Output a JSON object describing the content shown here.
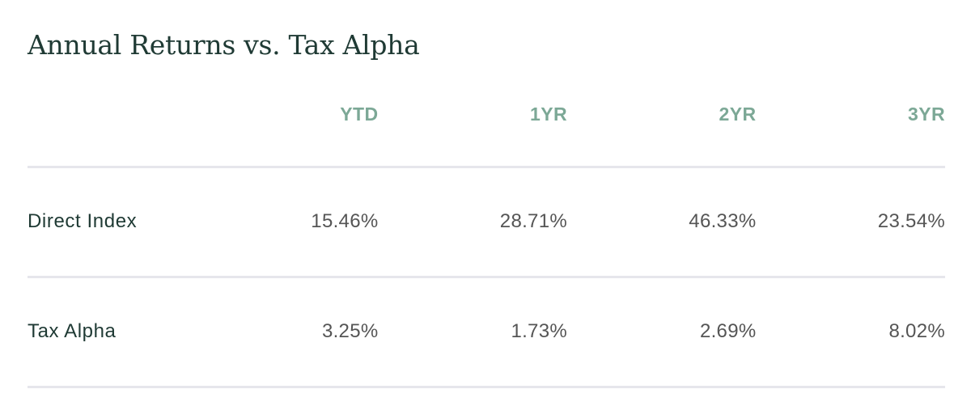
{
  "title": "Annual Returns vs. Tax Alpha",
  "columns": [
    "YTD",
    "1YR",
    "2YR",
    "3YR"
  ],
  "rows": [
    {
      "label": "Direct Index",
      "values": [
        "15.46%",
        "28.71%",
        "46.33%",
        "23.54%"
      ]
    },
    {
      "label": "Tax Alpha",
      "values": [
        "3.25%",
        "1.73%",
        "2.69%",
        "8.02%"
      ]
    }
  ],
  "colors": {
    "title": "#1f3a34",
    "header_accent": "#7ca896",
    "value_text": "#555555",
    "divider": "#e6e6ec"
  }
}
